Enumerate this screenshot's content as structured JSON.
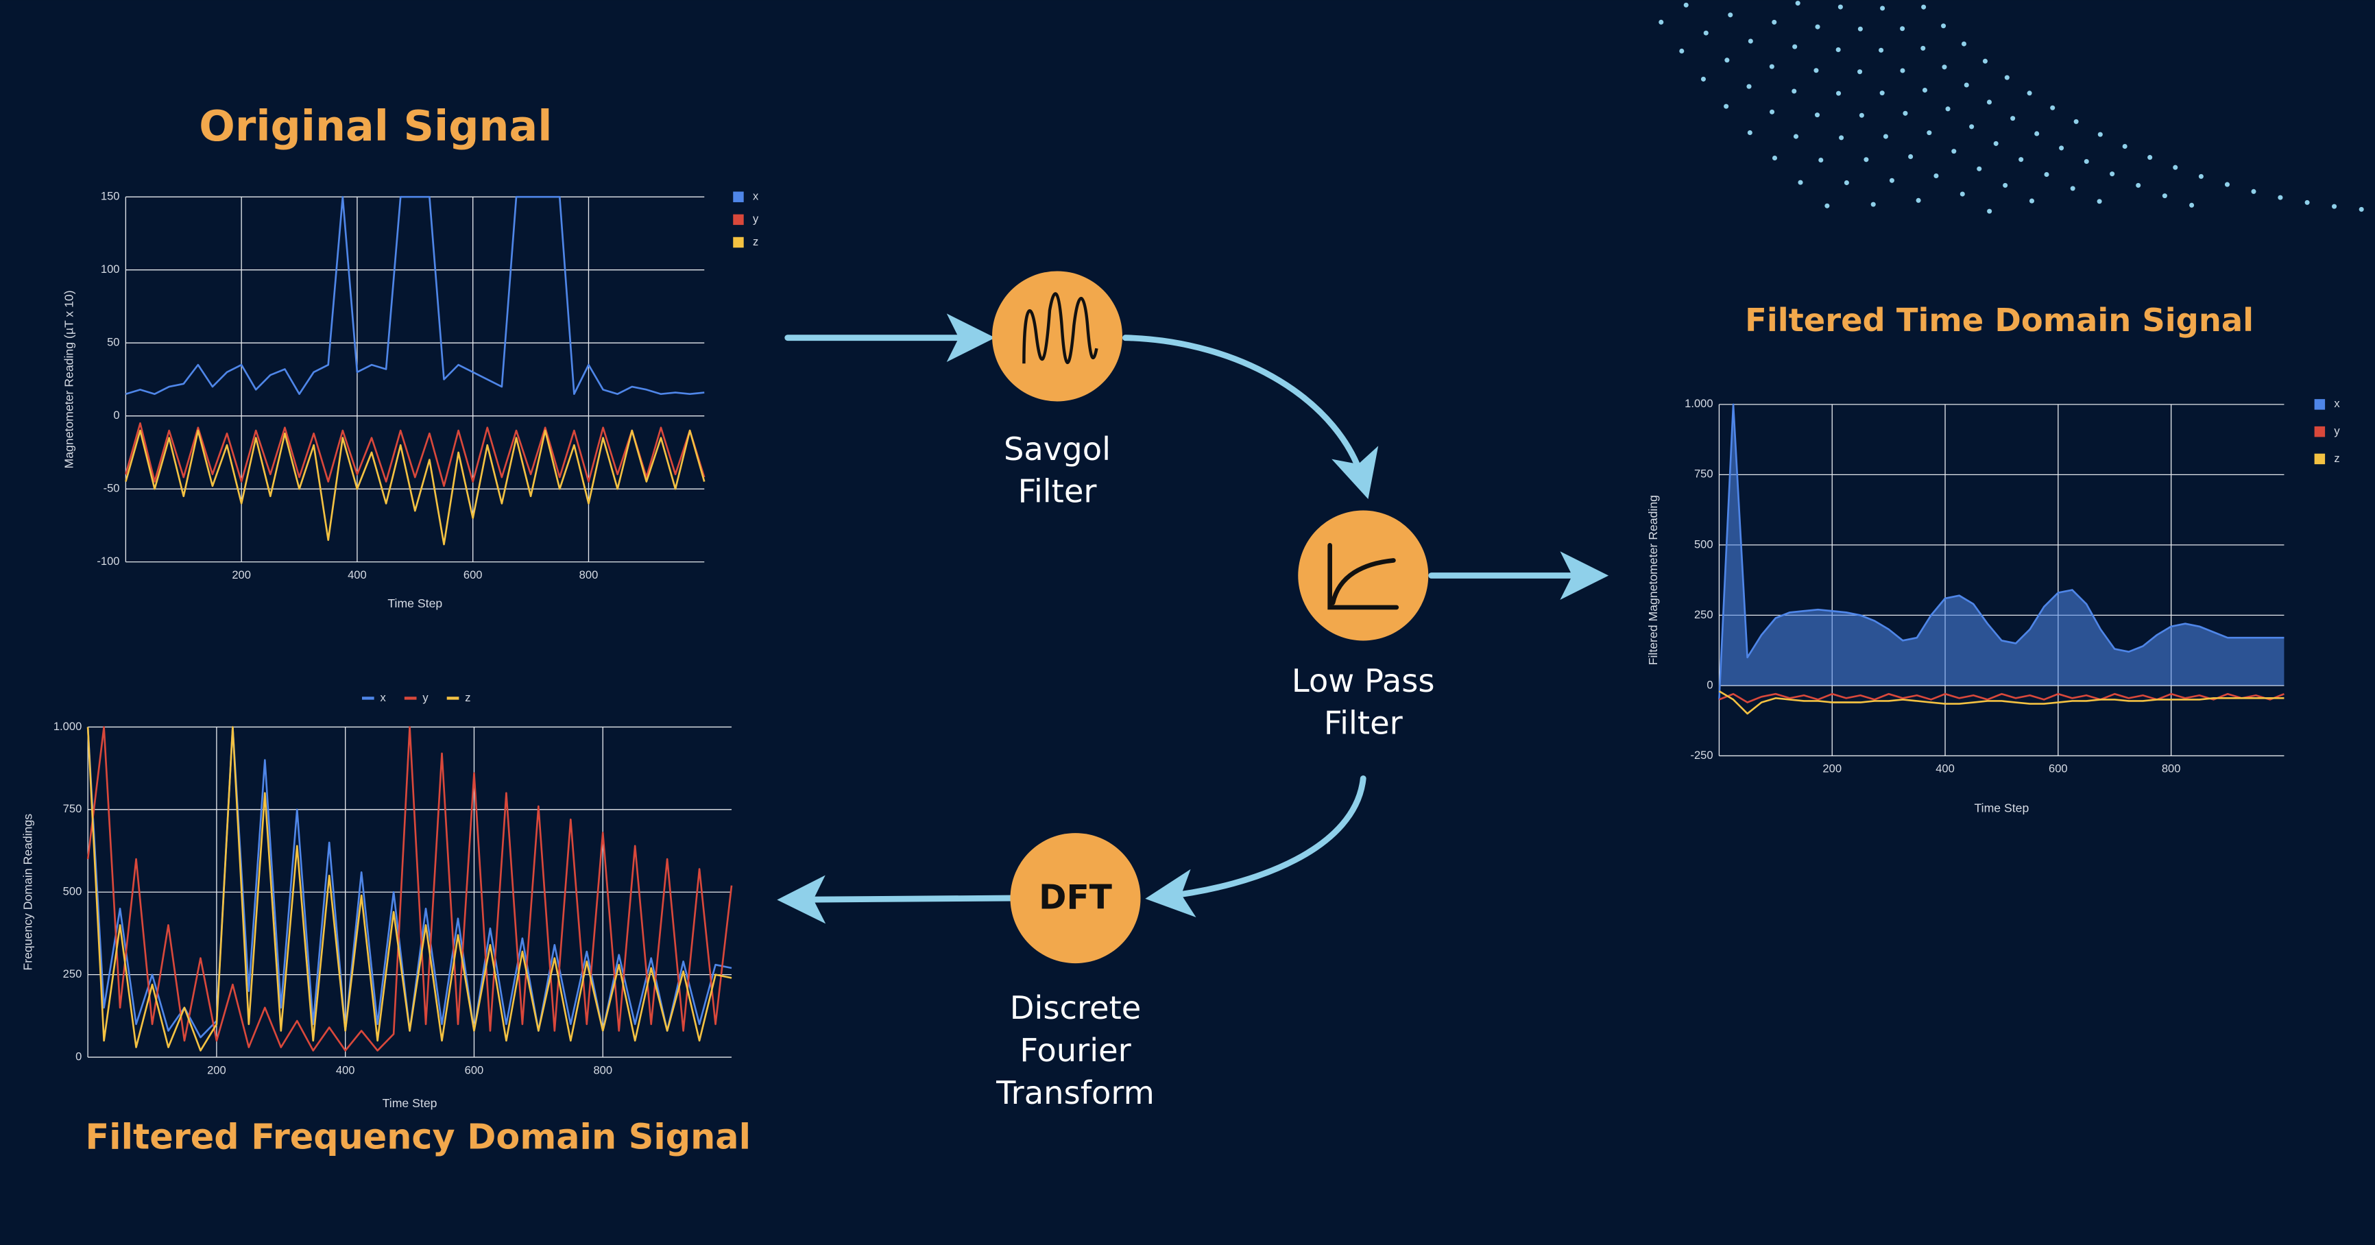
{
  "chart_data": [
    {
      "type": "line",
      "title": "Original Signal",
      "x_label": "Time Step",
      "y_label": "Magnetometer Reading (µT x 10)",
      "xlim": [
        0,
        1000
      ],
      "ylim": [
        -100,
        150
      ],
      "xticks": [
        200,
        400,
        600,
        800
      ],
      "yticks": [
        -100,
        -50,
        0,
        50,
        100,
        150
      ],
      "grid": true,
      "legend": "right",
      "x": [
        0,
        25,
        50,
        75,
        100,
        125,
        150,
        175,
        200,
        225,
        250,
        275,
        300,
        325,
        350,
        375,
        400,
        425,
        450,
        475,
        500,
        525,
        550,
        575,
        600,
        625,
        650,
        675,
        700,
        725,
        750,
        775,
        800,
        825,
        850,
        875,
        900,
        925,
        950,
        975,
        1000
      ],
      "series": [
        {
          "name": "x",
          "color": "#4f86e8",
          "values": [
            15,
            18,
            15,
            20,
            22,
            35,
            20,
            30,
            35,
            18,
            28,
            32,
            15,
            30,
            35,
            150,
            30,
            35,
            32,
            150,
            150,
            150,
            25,
            35,
            30,
            25,
            20,
            150,
            150,
            150,
            150,
            15,
            35,
            18,
            15,
            20,
            18,
            15,
            16,
            15,
            16
          ]
        },
        {
          "name": "y",
          "color": "#d9483b",
          "values": [
            -40,
            -5,
            -45,
            -10,
            -42,
            -8,
            -40,
            -12,
            -45,
            -10,
            -40,
            -8,
            -42,
            -12,
            -45,
            -10,
            -40,
            -15,
            -45,
            -10,
            -42,
            -12,
            -48,
            -10,
            -45,
            -8,
            -42,
            -10,
            -40,
            -8,
            -42,
            -10,
            -45,
            -8,
            -40,
            -10,
            -42,
            -8,
            -40,
            -10,
            -42
          ]
        },
        {
          "name": "z",
          "color": "#f4c242",
          "values": [
            -45,
            -10,
            -50,
            -15,
            -55,
            -10,
            -48,
            -20,
            -60,
            -15,
            -55,
            -12,
            -50,
            -20,
            -85,
            -15,
            -50,
            -25,
            -60,
            -20,
            -65,
            -30,
            -88,
            -25,
            -70,
            -20,
            -60,
            -15,
            -55,
            -10,
            -50,
            -20,
            -60,
            -15,
            -50,
            -10,
            -45,
            -15,
            -50,
            -10,
            -45
          ]
        }
      ]
    },
    {
      "type": "line",
      "title": "Filtered Time Domain Signal",
      "x_label": "Time Step",
      "y_label": "Filtered Magnetometer Reading",
      "xlim": [
        0,
        1000
      ],
      "ylim": [
        -250,
        1000
      ],
      "xticks": [
        200,
        400,
        600,
        800
      ],
      "yticks": [
        -250,
        0,
        250,
        500,
        750,
        {
          "value": 1000,
          "label": "1.000"
        }
      ],
      "grid": true,
      "legend": "right",
      "x": [
        0,
        25,
        50,
        75,
        100,
        125,
        150,
        175,
        200,
        225,
        250,
        275,
        300,
        325,
        350,
        375,
        400,
        425,
        450,
        475,
        500,
        525,
        550,
        575,
        600,
        625,
        650,
        675,
        700,
        725,
        750,
        775,
        800,
        825,
        850,
        875,
        900,
        925,
        950,
        975,
        1000
      ],
      "series": [
        {
          "name": "x",
          "color": "#4f86e8",
          "fill": true,
          "values": [
            -50,
            1000,
            100,
            180,
            240,
            260,
            265,
            270,
            265,
            260,
            250,
            230,
            200,
            160,
            170,
            250,
            310,
            320,
            290,
            220,
            160,
            150,
            200,
            280,
            330,
            340,
            290,
            200,
            130,
            120,
            140,
            180,
            210,
            220,
            210,
            190,
            170,
            170,
            170,
            170,
            170
          ]
        },
        {
          "name": "y",
          "color": "#d9483b",
          "values": [
            -50,
            -30,
            -60,
            -40,
            -30,
            -45,
            -35,
            -50,
            -30,
            -45,
            -35,
            -50,
            -30,
            -45,
            -35,
            -50,
            -30,
            -45,
            -35,
            -50,
            -30,
            -45,
            -35,
            -50,
            -30,
            -45,
            -35,
            -50,
            -30,
            -45,
            -35,
            -50,
            -30,
            -45,
            -35,
            -50,
            -30,
            -45,
            -35,
            -50,
            -30
          ]
        },
        {
          "name": "z",
          "color": "#f4c242",
          "values": [
            -20,
            -50,
            -100,
            -60,
            -45,
            -50,
            -55,
            -55,
            -60,
            -60,
            -60,
            -55,
            -55,
            -50,
            -55,
            -60,
            -65,
            -65,
            -60,
            -55,
            -55,
            -60,
            -65,
            -65,
            -60,
            -55,
            -55,
            -50,
            -50,
            -55,
            -55,
            -50,
            -50,
            -50,
            -50,
            -45,
            -45,
            -45,
            -45,
            -45,
            -45
          ]
        }
      ]
    },
    {
      "type": "line",
      "title": "Filtered Frequency Domain Signal",
      "x_label": "Time Step",
      "y_label": "Frequency Domain Readings",
      "xlim": [
        0,
        1000
      ],
      "ylim": [
        0,
        1000
      ],
      "xticks": [
        200,
        400,
        600,
        800
      ],
      "yticks": [
        0,
        250,
        500,
        750,
        {
          "value": 1000,
          "label": "1.000"
        }
      ],
      "grid": true,
      "legend": "top",
      "x": [
        0,
        25,
        50,
        75,
        100,
        125,
        150,
        175,
        200,
        225,
        250,
        275,
        300,
        325,
        350,
        375,
        400,
        425,
        450,
        475,
        500,
        525,
        550,
        575,
        600,
        625,
        650,
        675,
        700,
        725,
        750,
        775,
        800,
        825,
        850,
        875,
        900,
        925,
        950,
        975,
        1000
      ],
      "series": [
        {
          "name": "x",
          "color": "#4f86e8",
          "values": [
            1000,
            150,
            450,
            100,
            250,
            80,
            150,
            60,
            110,
            1000,
            200,
            900,
            150,
            750,
            100,
            650,
            80,
            560,
            100,
            500,
            80,
            450,
            100,
            420,
            80,
            390,
            100,
            360,
            80,
            340,
            100,
            320,
            80,
            310,
            100,
            300,
            80,
            290,
            100,
            280,
            270
          ]
        },
        {
          "name": "y",
          "color": "#d9483b",
          "values": [
            600,
            1000,
            150,
            600,
            100,
            400,
            50,
            300,
            50,
            220,
            30,
            150,
            30,
            110,
            20,
            90,
            20,
            80,
            20,
            70,
            1000,
            100,
            920,
            100,
            860,
            80,
            800,
            100,
            760,
            80,
            720,
            100,
            680,
            80,
            640,
            100,
            600,
            80,
            570,
            100,
            520
          ]
        },
        {
          "name": "z",
          "color": "#f4c242",
          "values": [
            1000,
            50,
            400,
            30,
            220,
            30,
            150,
            20,
            100,
            1000,
            100,
            800,
            80,
            640,
            50,
            550,
            80,
            490,
            50,
            440,
            80,
            400,
            50,
            370,
            80,
            340,
            50,
            320,
            80,
            300,
            50,
            290,
            80,
            280,
            50,
            270,
            80,
            260,
            50,
            250,
            240
          ]
        }
      ]
    }
  ],
  "diagram": {
    "nodes": [
      {
        "label": [
          "Savgol",
          "Filter"
        ]
      },
      {
        "label": [
          "Low Pass",
          "Filter"
        ]
      },
      {
        "icon_text": "DFT",
        "label": [
          "Discrete",
          "Fourier",
          "Transform"
        ]
      }
    ]
  }
}
